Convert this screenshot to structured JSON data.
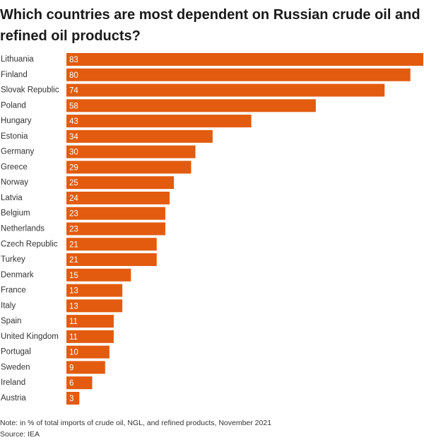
{
  "chart_data": {
    "type": "bar",
    "orientation": "horizontal",
    "title": "Which countries are most dependent on Russian crude oil and refined oil products?",
    "categories": [
      "Lithuania",
      "Finland",
      "Slovak Republic",
      "Poland",
      "Hungary",
      "Estonia",
      "Germany",
      "Greece",
      "Norway",
      "Latvia",
      "Belgium",
      "Netherlands",
      "Czech Republic",
      "Turkey",
      "Denmark",
      "France",
      "Italy",
      "Spain",
      "United Kingdom",
      "Portugal",
      "Sweden",
      "Ireland",
      "Austria"
    ],
    "values": [
      83,
      80,
      74,
      58,
      43,
      34,
      30,
      29,
      25,
      24,
      23,
      23,
      21,
      21,
      15,
      13,
      13,
      11,
      11,
      10,
      9,
      6,
      3
    ],
    "color": "#e35b0e",
    "note": "Note: in % of total imports of crude oil, NGL, and refined products, November 2021",
    "source": "Source: IEA"
  }
}
